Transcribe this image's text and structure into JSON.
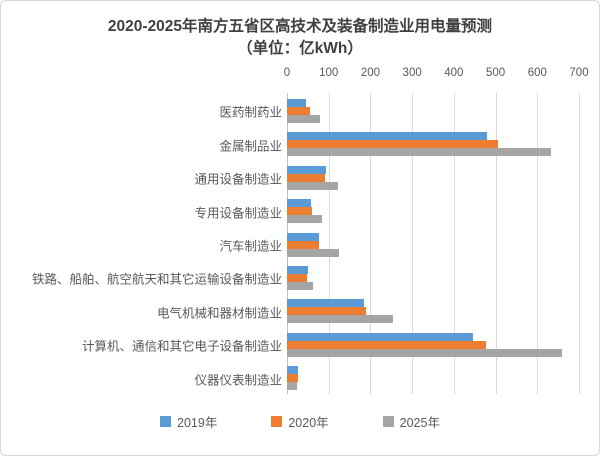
{
  "title": {
    "line1": "2020-2025年南方五省区高技术及装备制造业用电量预测",
    "line2": "（单位：亿kWh）"
  },
  "chart_data": {
    "type": "bar",
    "orientation": "horizontal",
    "title": "2020-2025年南方五省区高技术及装备制造业用电量预测",
    "unit_label": "（单位：亿kWh）",
    "unit": "亿kWh",
    "categories": [
      "医药制药业",
      "金属制品业",
      "通用设备制造业",
      "专用设备制造业",
      "汽车制造业",
      "铁路、船舶、航空航天和其它运输设备制造业",
      "电气机械和器材制造业",
      "计算机、通信和其它电子设备制造业",
      "仪器仪表制造业"
    ],
    "series": [
      {
        "name": "2019年",
        "color": "#5B9BD5",
        "values": [
          45,
          480,
          93,
          57,
          76,
          50,
          185,
          445,
          26
        ]
      },
      {
        "name": "2020年",
        "color": "#ED7D31",
        "values": [
          55,
          505,
          91,
          60,
          77,
          48,
          190,
          477,
          27
        ]
      },
      {
        "name": "2025年",
        "color": "#A5A5A5",
        "values": [
          78,
          633,
          123,
          85,
          125,
          62,
          255,
          660,
          25
        ]
      }
    ],
    "x_axis": {
      "position": "top",
      "min": 0,
      "max": 700,
      "tick_interval": 100,
      "ticks": [
        0,
        100,
        200,
        300,
        400,
        500,
        600,
        700
      ]
    },
    "legend": {
      "position": "bottom",
      "entries": [
        "2019年",
        "2020年",
        "2025年"
      ]
    },
    "grid": true
  },
  "colors": {
    "series_2019": "#5B9BD5",
    "series_2020": "#ED7D31",
    "series_2025": "#A5A5A5",
    "gridline": "#D9D9D9",
    "axis_line": "#BFBFBF",
    "label_text": "#595959",
    "title_text": "#404040",
    "border": "#D9D9D9",
    "background": "#FFFFFF"
  }
}
